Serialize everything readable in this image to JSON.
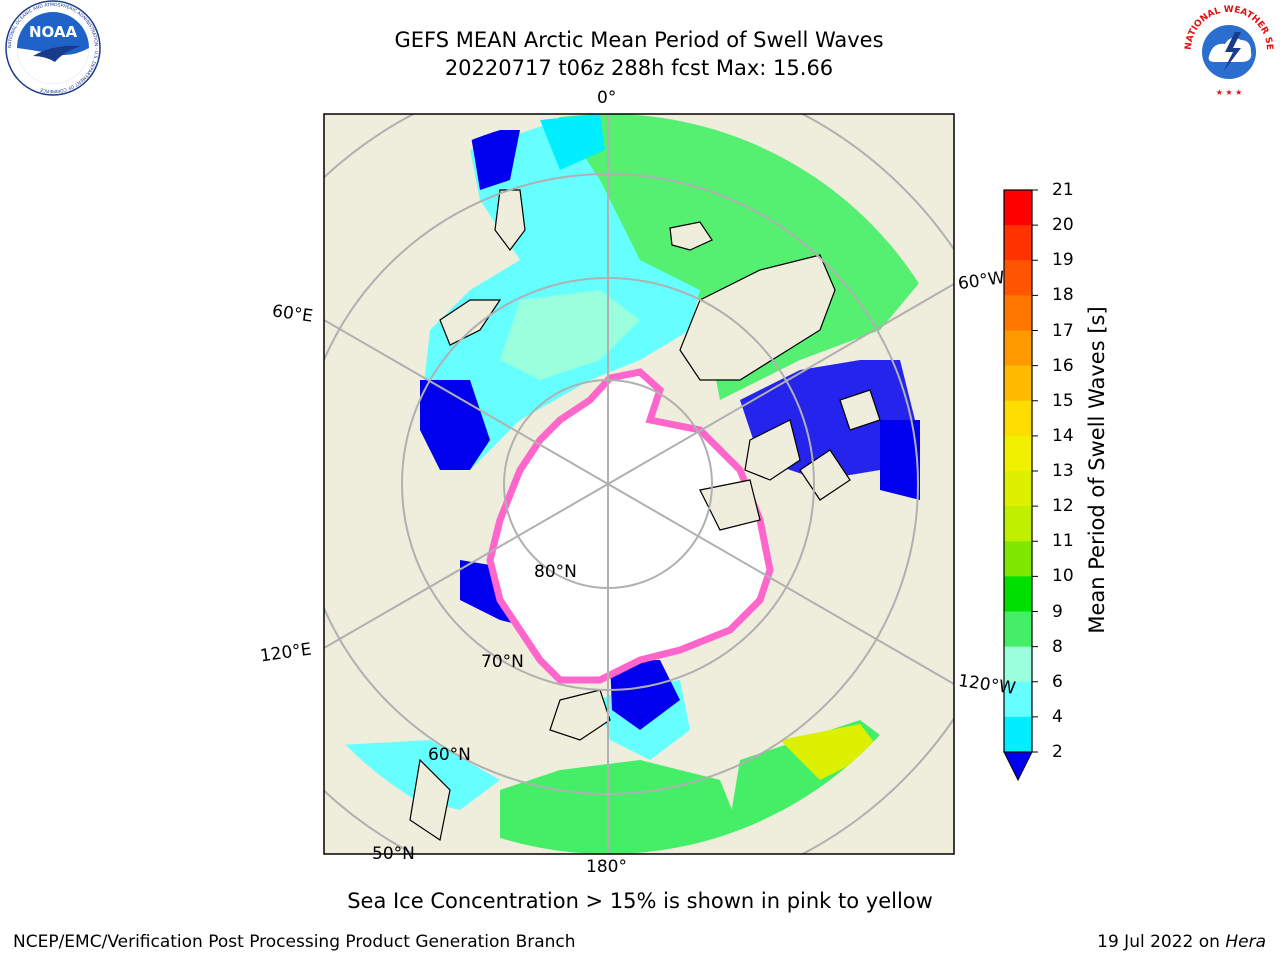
{
  "header": {
    "line1": "GEFS MEAN Arctic Mean Period of Swell Waves",
    "line2": "20220717 t06z 288h fcst   Max: 15.66"
  },
  "logos": {
    "left": {
      "text": "NOAA",
      "ring_text": "NATIONAL OCEANIC AND ATMOSPHERIC ADMINISTRATION · U.S. DEPARTMENT OF COMMERCE"
    },
    "right": {
      "ring_text": "NATIONAL WEATHER SERVICE"
    }
  },
  "map": {
    "projection": "north polar stereographic",
    "longitude_labels": {
      "top": "0°",
      "bottom": "180°",
      "e60": "60°E",
      "e120": "120°E",
      "w60": "60°W",
      "w120": "120°W"
    },
    "latitude_labels": {
      "lat80": "80°N",
      "lat70": "70°N",
      "lat60": "60°N",
      "lat50": "50°N"
    },
    "colors": {
      "land": "#efeddc",
      "ice": "#ffffff",
      "ice_edge": "#ff66cc",
      "grid": "#b0b0b0"
    }
  },
  "colorbar": {
    "title": "Mean Period of Swell Waves [s]",
    "ticks": [
      "21",
      "20",
      "19",
      "18",
      "17",
      "16",
      "15",
      "14",
      "13",
      "12",
      "11",
      "10",
      "9",
      "8",
      "6",
      "4",
      "2"
    ],
    "colors": [
      "#ff0000",
      "#ff3300",
      "#ff5500",
      "#ff7700",
      "#ff9900",
      "#ffbb00",
      "#ffdd00",
      "#f0f000",
      "#ddf000",
      "#c0f000",
      "#80e800",
      "#00e000",
      "#44ee66",
      "#99ffdd",
      "#66ffff",
      "#00eeff",
      "#0066ff",
      "#0000ee"
    ]
  },
  "caption": "Sea Ice Concentration > 15% is shown in pink to yellow",
  "footer": {
    "left": "NCEP/EMC/Verification Post Processing Product Generation Branch",
    "right_prefix": "19 Jul 2022 on ",
    "right_host": "Hera"
  }
}
